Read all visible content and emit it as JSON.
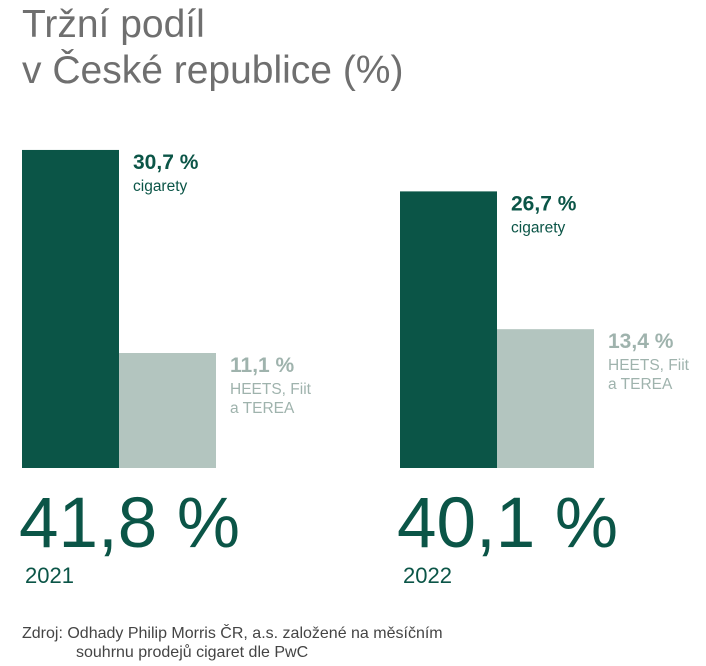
{
  "title": {
    "line1": "Tržní podíl",
    "line2": "v České republice (%)"
  },
  "colors": {
    "cigarettes": "#0b5547",
    "heated": "#b3c5bf",
    "total_text": "#0b5547",
    "title": "#6f6f6f"
  },
  "source": {
    "label": "Zdroj:",
    "line1": "Odhady Philip Morris ČR, a.s. založené na měsíčním",
    "line2": "souhrnu prodejů cigaret dle PwC"
  },
  "chart_data": {
    "type": "bar",
    "groups": [
      {
        "year": "2021",
        "total": 41.8,
        "total_label": "41,8 %",
        "bars": [
          {
            "series": "cigarety",
            "value": 30.7,
            "value_label": "30,7 %",
            "label_lines": [
              "cigarety"
            ]
          },
          {
            "series": "HEETS, Fiit a TEREA",
            "value": 11.1,
            "value_label": "11,1 %",
            "label_lines": [
              "HEETS, Fiit",
              "a TEREA"
            ]
          }
        ]
      },
      {
        "year": "2022",
        "total": 40.1,
        "total_label": "40,1 %",
        "bars": [
          {
            "series": "cigarety",
            "value": 26.7,
            "value_label": "26,7 %",
            "label_lines": [
              "cigarety"
            ]
          },
          {
            "series": "HEETS, Fiit a TEREA",
            "value": 13.4,
            "value_label": "13,4 %",
            "label_lines": [
              "HEETS, Fiit",
              "a TEREA"
            ]
          }
        ]
      }
    ]
  }
}
